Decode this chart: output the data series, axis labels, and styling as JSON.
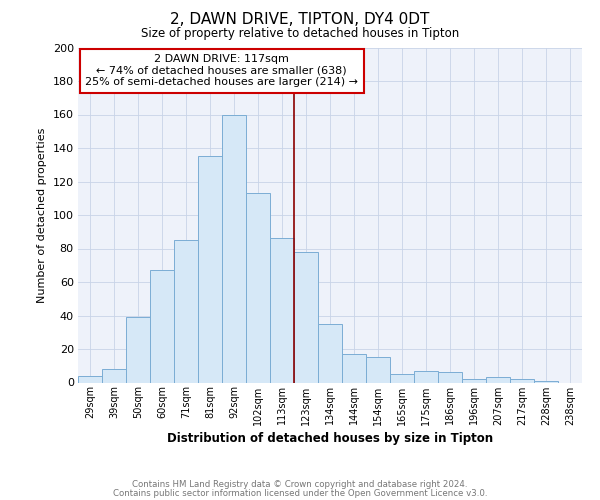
{
  "title": "2, DAWN DRIVE, TIPTON, DY4 0DT",
  "subtitle": "Size of property relative to detached houses in Tipton",
  "xlabel": "Distribution of detached houses by size in Tipton",
  "ylabel": "Number of detached properties",
  "bar_labels": [
    "29sqm",
    "39sqm",
    "50sqm",
    "60sqm",
    "71sqm",
    "81sqm",
    "92sqm",
    "102sqm",
    "113sqm",
    "123sqm",
    "134sqm",
    "144sqm",
    "154sqm",
    "165sqm",
    "175sqm",
    "186sqm",
    "196sqm",
    "207sqm",
    "217sqm",
    "228sqm",
    "238sqm"
  ],
  "bar_values": [
    4,
    8,
    39,
    67,
    85,
    135,
    160,
    113,
    86,
    78,
    35,
    17,
    15,
    5,
    7,
    6,
    2,
    3,
    2,
    1,
    0
  ],
  "bar_color": "#d6e8f7",
  "bar_edge_color": "#7badd4",
  "vline_x": 8.5,
  "vline_color": "#8b0000",
  "annotation_text": "2 DAWN DRIVE: 117sqm\n← 74% of detached houses are smaller (638)\n25% of semi-detached houses are larger (214) →",
  "annotation_box_color": "#ffffff",
  "annotation_box_edge": "#cc0000",
  "ylim": [
    0,
    200
  ],
  "yticks": [
    0,
    20,
    40,
    60,
    80,
    100,
    120,
    140,
    160,
    180,
    200
  ],
  "footer1": "Contains HM Land Registry data © Crown copyright and database right 2024.",
  "footer2": "Contains public sector information licensed under the Open Government Licence v3.0.",
  "bg_color": "#f0f4fa",
  "plot_bg_color": "#eef2fa",
  "grid_color": "#c8d4e8"
}
